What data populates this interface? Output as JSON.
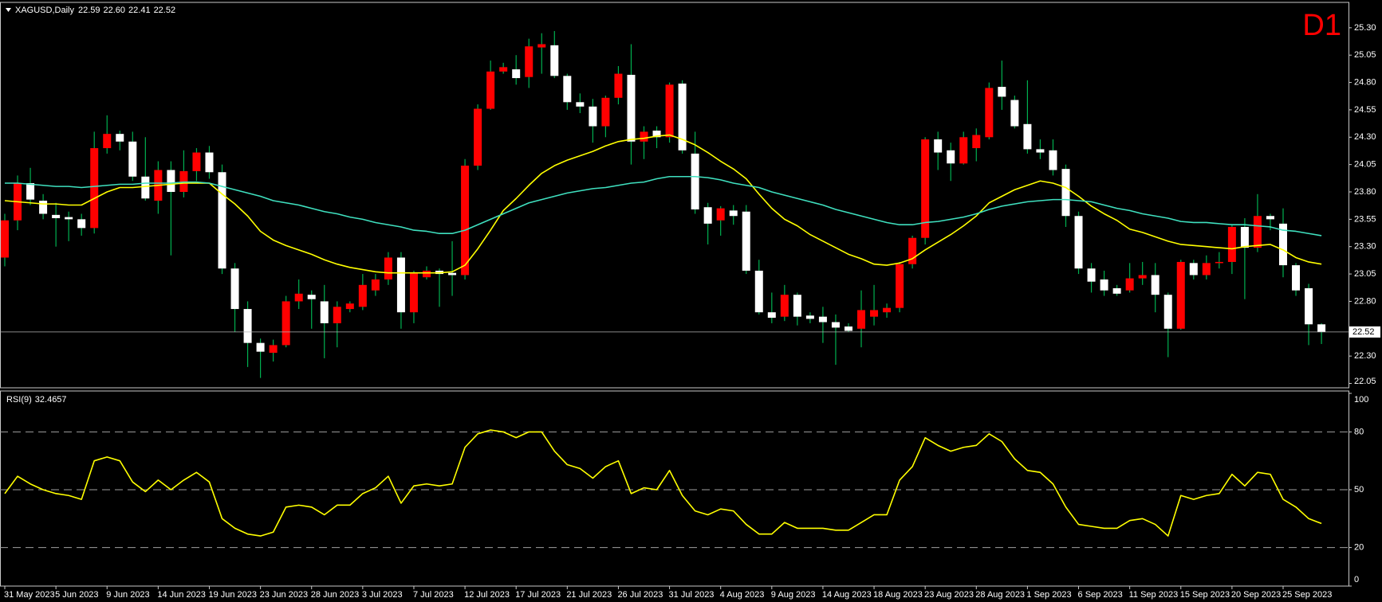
{
  "chart_data": [
    {
      "type": "candlestick",
      "title": "XAGUSD,Daily",
      "last_quote_labels": [
        "22.59",
        "22.60",
        "22.41",
        "22.52"
      ],
      "timeframe_label": "D1",
      "categories": [
        "31 May 2023",
        null,
        null,
        null,
        "5 Jun 2023",
        null,
        null,
        null,
        "9 Jun 2023",
        null,
        null,
        null,
        "14 Jun 2023",
        null,
        null,
        null,
        "19 Jun 2023",
        null,
        null,
        null,
        "23 Jun 2023",
        null,
        null,
        null,
        "28 Jun 2023",
        null,
        null,
        null,
        "3 Jul 2023",
        null,
        null,
        null,
        "7 Jul 2023",
        null,
        null,
        null,
        "12 Jul 2023",
        null,
        null,
        null,
        "17 Jul 2023",
        null,
        null,
        null,
        "21 Jul 2023",
        null,
        null,
        null,
        "26 Jul 2023",
        null,
        null,
        null,
        "31 Jul 2023",
        null,
        null,
        null,
        "4 Aug 2023",
        null,
        null,
        null,
        "9 Aug 2023",
        null,
        null,
        null,
        "14 Aug 2023",
        null,
        null,
        null,
        "18 Aug 2023",
        null,
        null,
        null,
        "23 Aug 2023",
        null,
        null,
        null,
        "28 Aug 2023",
        null,
        null,
        null,
        "1 Sep 2023",
        null,
        null,
        null,
        "6 Sep 2023",
        null,
        null,
        null,
        "11 Sep 2023",
        null,
        null,
        null,
        "15 Sep 2023",
        null,
        null,
        null,
        "20 Sep 2023",
        null,
        null,
        null,
        "25 Sep 2023",
        null,
        null,
        null
      ],
      "open": [
        23.2,
        23.54,
        23.88,
        23.72,
        23.59,
        23.57,
        23.55,
        23.47,
        24.2,
        24.33,
        24.26,
        23.94,
        23.72,
        24.0,
        23.8,
        23.99,
        24.16,
        23.98,
        23.1,
        22.73,
        22.42,
        22.33,
        22.4,
        22.8,
        22.86,
        22.8,
        22.6,
        22.73,
        22.75,
        22.9,
        23.0,
        23.2,
        22.7,
        23.02,
        23.08,
        23.06,
        23.04,
        24.04,
        24.56,
        24.9,
        24.92,
        24.85,
        25.12,
        25.14,
        24.86,
        24.62,
        24.58,
        24.4,
        24.66,
        24.87,
        24.26,
        24.36,
        24.3,
        24.79,
        24.15,
        23.66,
        23.54,
        23.63,
        23.62,
        23.08,
        22.7,
        22.66,
        22.86,
        22.67,
        22.66,
        22.61,
        22.57,
        22.55,
        22.66,
        22.7,
        22.74,
        23.14,
        23.38,
        24.28,
        24.18,
        24.06,
        24.2,
        24.3,
        24.76,
        24.64,
        24.42,
        24.19,
        24.18,
        24.01,
        23.58,
        23.1,
        23.0,
        22.92,
        22.9,
        23.01,
        23.04,
        22.86,
        22.55,
        23.15,
        23.04,
        23.15,
        23.16,
        23.48,
        23.29,
        23.58,
        23.51,
        23.13,
        22.92,
        22.59
      ],
      "high": [
        23.6,
        23.95,
        24.02,
        23.78,
        23.7,
        23.62,
        23.6,
        24.35,
        24.5,
        24.36,
        24.35,
        24.3,
        24.08,
        24.08,
        24.18,
        24.2,
        24.22,
        24.05,
        23.15,
        22.8,
        22.46,
        22.45,
        22.85,
        23.0,
        22.9,
        22.95,
        22.8,
        22.8,
        23.05,
        23.05,
        23.25,
        23.25,
        23.08,
        23.12,
        23.1,
        23.35,
        24.1,
        24.6,
        25.0,
        24.98,
        25.05,
        25.2,
        25.25,
        25.27,
        24.88,
        24.7,
        24.65,
        24.68,
        24.95,
        25.15,
        24.4,
        24.4,
        24.8,
        24.82,
        24.35,
        23.7,
        23.67,
        23.68,
        23.68,
        23.18,
        22.88,
        22.95,
        22.88,
        22.7,
        22.75,
        22.68,
        22.6,
        22.9,
        22.95,
        22.78,
        23.16,
        23.4,
        24.3,
        24.35,
        24.25,
        24.35,
        24.38,
        24.8,
        25.0,
        24.68,
        24.82,
        24.28,
        24.28,
        24.05,
        23.62,
        23.15,
        23.08,
        22.95,
        23.15,
        23.16,
        23.15,
        22.88,
        23.18,
        23.18,
        23.22,
        23.25,
        23.5,
        23.56,
        23.78,
        23.6,
        23.65,
        23.15,
        22.96,
        22.6
      ],
      "low": [
        23.12,
        23.45,
        23.68,
        23.55,
        23.3,
        23.35,
        23.4,
        23.42,
        24.15,
        24.18,
        23.9,
        23.72,
        23.6,
        23.22,
        23.75,
        23.9,
        23.92,
        23.05,
        22.52,
        22.2,
        22.1,
        22.25,
        22.38,
        22.73,
        22.55,
        22.28,
        22.38,
        22.7,
        22.72,
        22.85,
        22.95,
        22.55,
        22.6,
        23.0,
        22.75,
        22.85,
        23.0,
        24.0,
        24.55,
        24.88,
        24.78,
        24.75,
        24.88,
        24.84,
        24.55,
        24.52,
        24.25,
        24.3,
        24.6,
        24.05,
        24.1,
        24.2,
        24.25,
        24.15,
        23.6,
        23.32,
        23.4,
        23.5,
        23.05,
        22.68,
        22.6,
        22.62,
        22.58,
        22.6,
        22.42,
        22.22,
        22.52,
        22.38,
        22.58,
        22.65,
        22.7,
        23.1,
        23.32,
        24.0,
        23.9,
        24.05,
        24.08,
        24.28,
        24.55,
        24.38,
        24.15,
        24.1,
        23.95,
        23.48,
        23.05,
        22.88,
        22.85,
        22.85,
        22.88,
        22.95,
        22.7,
        22.29,
        22.54,
        23.0,
        23.0,
        23.1,
        23.05,
        22.82,
        23.25,
        23.45,
        23.02,
        22.85,
        22.4,
        22.41
      ],
      "close": [
        23.54,
        23.88,
        23.73,
        23.6,
        23.56,
        23.55,
        23.47,
        24.2,
        24.33,
        24.26,
        23.94,
        23.74,
        24.0,
        23.8,
        23.99,
        24.16,
        23.98,
        23.1,
        22.73,
        22.42,
        22.34,
        22.4,
        22.8,
        22.87,
        22.82,
        22.6,
        22.75,
        22.78,
        22.95,
        23.0,
        23.2,
        22.7,
        23.06,
        23.08,
        23.05,
        23.04,
        24.04,
        24.56,
        24.9,
        24.94,
        24.84,
        25.13,
        25.15,
        24.86,
        24.62,
        24.58,
        24.4,
        24.66,
        24.88,
        24.26,
        24.35,
        24.3,
        24.78,
        24.18,
        23.64,
        23.51,
        23.65,
        23.58,
        23.08,
        22.7,
        22.65,
        22.86,
        22.66,
        22.64,
        22.61,
        22.56,
        22.53,
        22.72,
        22.72,
        22.74,
        23.14,
        23.38,
        24.28,
        24.16,
        24.06,
        24.3,
        24.32,
        24.75,
        24.67,
        24.4,
        24.19,
        24.16,
        24.0,
        23.58,
        23.1,
        22.98,
        22.9,
        22.87,
        23.01,
        23.04,
        22.86,
        22.55,
        23.16,
        23.04,
        23.15,
        23.16,
        23.48,
        23.29,
        23.58,
        23.55,
        23.13,
        22.9,
        22.59,
        22.52
      ],
      "up_color": "#ff0000",
      "down_color": "#ffffff",
      "wick_color": "#00b050",
      "series": [
        {
          "color": "#ffff00",
          "values": [
            23.72,
            23.71,
            23.7,
            23.69,
            23.69,
            23.68,
            23.68,
            23.74,
            23.8,
            23.84,
            23.84,
            23.85,
            23.86,
            23.87,
            23.88,
            23.88,
            23.88,
            23.78,
            23.69,
            23.58,
            23.44,
            23.36,
            23.31,
            23.27,
            23.23,
            23.18,
            23.14,
            23.11,
            23.09,
            23.07,
            23.06,
            23.06,
            23.06,
            23.06,
            23.06,
            23.07,
            23.13,
            23.28,
            23.45,
            23.63,
            23.74,
            23.86,
            23.97,
            24.04,
            24.09,
            24.13,
            24.17,
            24.22,
            24.26,
            24.28,
            24.29,
            24.31,
            24.32,
            24.28,
            24.23,
            24.16,
            24.08,
            24.01,
            23.92,
            23.78,
            23.65,
            23.55,
            23.49,
            23.41,
            23.35,
            23.29,
            23.23,
            23.19,
            23.14,
            23.13,
            23.15,
            23.19,
            23.27,
            23.34,
            23.41,
            23.49,
            23.58,
            23.7,
            23.76,
            23.82,
            23.86,
            23.9,
            23.88,
            23.84,
            23.76,
            23.67,
            23.6,
            23.54,
            23.46,
            23.43,
            23.39,
            23.35,
            23.32,
            23.31,
            23.3,
            23.29,
            23.28,
            23.3,
            23.31,
            23.32,
            23.27,
            23.2,
            23.16,
            23.14
          ]
        },
        {
          "color": "#3fe0bf",
          "values": [
            23.88,
            23.88,
            23.87,
            23.86,
            23.85,
            23.85,
            23.84,
            23.85,
            23.86,
            23.87,
            23.87,
            23.88,
            23.88,
            23.88,
            23.89,
            23.89,
            23.88,
            23.85,
            23.82,
            23.79,
            23.76,
            23.72,
            23.7,
            23.68,
            23.65,
            23.62,
            23.6,
            23.57,
            23.55,
            23.52,
            23.5,
            23.48,
            23.45,
            23.44,
            23.42,
            23.42,
            23.45,
            23.5,
            23.55,
            23.6,
            23.65,
            23.7,
            23.73,
            23.76,
            23.79,
            23.81,
            23.83,
            23.84,
            23.86,
            23.88,
            23.89,
            23.92,
            23.94,
            23.94,
            23.94,
            23.93,
            23.91,
            23.88,
            23.86,
            23.84,
            23.8,
            23.77,
            23.74,
            23.71,
            23.68,
            23.64,
            23.61,
            23.58,
            23.55,
            23.52,
            23.5,
            23.5,
            23.52,
            23.53,
            23.55,
            23.57,
            23.6,
            23.64,
            23.67,
            23.69,
            23.71,
            23.72,
            23.73,
            23.73,
            23.72,
            23.71,
            23.68,
            23.65,
            23.63,
            23.6,
            23.58,
            23.56,
            23.53,
            23.52,
            23.52,
            23.51,
            23.5,
            23.5,
            23.49,
            23.48,
            23.45,
            23.44,
            23.42,
            23.4
          ]
        }
      ],
      "current_price": 22.52,
      "ylim": [
        22.01,
        25.51
      ],
      "yticks": [
        22.05,
        {
          "value": 22.3,
          "label": "22.30"
        },
        {
          "value": 22.8,
          "label": "22.80"
        },
        23.05,
        {
          "value": 23.3,
          "label": "23.30"
        },
        23.55,
        {
          "value": 23.8,
          "label": "23.80"
        },
        24.05,
        {
          "value": 24.3,
          "label": "24.30"
        },
        24.55,
        {
          "value": 24.8,
          "label": "24.80"
        },
        25.05,
        {
          "value": 25.3,
          "label": "25.30"
        }
      ],
      "grid": false
    },
    {
      "type": "line",
      "title": "RSI(9)",
      "series": [
        {
          "color": "#ffff00",
          "values": [
            48,
            57,
            53,
            50,
            48,
            47,
            45,
            65,
            67,
            65,
            54,
            49,
            55,
            50,
            55,
            59,
            54,
            35,
            30,
            27,
            26,
            28,
            41,
            42,
            41,
            37,
            42,
            42,
            48,
            51,
            57,
            43,
            52,
            53,
            52,
            53,
            72,
            79,
            81,
            80,
            77,
            80,
            80,
            70,
            63,
            61,
            56,
            62,
            65,
            48,
            51,
            50,
            60,
            47,
            39,
            37,
            40,
            39,
            32,
            27,
            27,
            33,
            30,
            30,
            30,
            29,
            29,
            33,
            37,
            37,
            55,
            62,
            77,
            73,
            70,
            72,
            73,
            79,
            75,
            66,
            60,
            59,
            53,
            41,
            32,
            31,
            30,
            30,
            34,
            35,
            32,
            26,
            47,
            45,
            47,
            48,
            58,
            52,
            59,
            58,
            45,
            41,
            35,
            32.4657
          ]
        }
      ],
      "ylim": [
        0,
        100
      ],
      "yticks": [
        0,
        20,
        50,
        80,
        100
      ],
      "grid": "dashed"
    }
  ]
}
